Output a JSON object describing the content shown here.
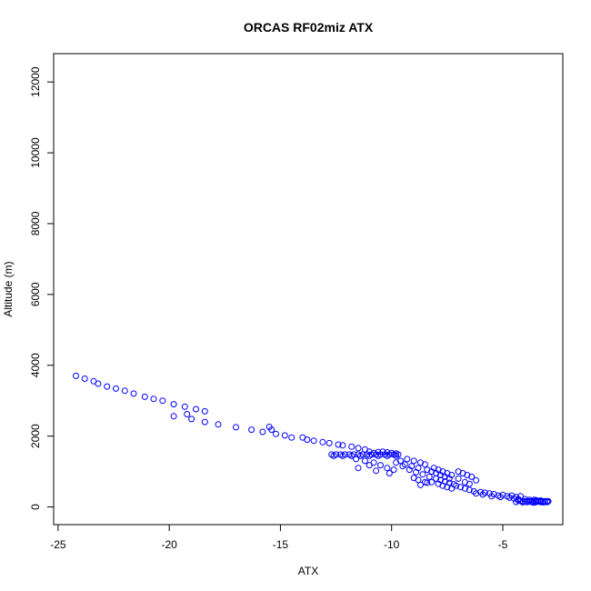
{
  "chart_data": {
    "type": "scatter",
    "title": "ORCAS RF02miz ATX",
    "xlabel": "ATX",
    "ylabel": "Altitude (m)",
    "xlim": [
      -25.2,
      -2.3
    ],
    "ylim": [
      -500,
      12800
    ],
    "xticks": [
      -25,
      -20,
      -15,
      -10,
      -5
    ],
    "yticks": [
      0,
      2000,
      4000,
      6000,
      8000,
      10000,
      12000
    ],
    "xtick_labels": [
      "-25",
      "-20",
      "-15",
      "-10",
      "-5"
    ],
    "ytick_labels": [
      "0",
      "2000",
      "4000",
      "6000",
      "8000",
      "10000",
      "12000"
    ],
    "grid": false,
    "marker": "open-circle",
    "color": "#0000ff",
    "points": [
      [
        -24.2,
        3700
      ],
      [
        -23.8,
        3620
      ],
      [
        -23.4,
        3550
      ],
      [
        -23.2,
        3480
      ],
      [
        -22.8,
        3400
      ],
      [
        -22.4,
        3340
      ],
      [
        -22.0,
        3280
      ],
      [
        -21.6,
        3200
      ],
      [
        -21.1,
        3110
      ],
      [
        -20.7,
        3050
      ],
      [
        -20.3,
        3000
      ],
      [
        -19.8,
        2900
      ],
      [
        -19.3,
        2830
      ],
      [
        -18.8,
        2760
      ],
      [
        -18.4,
        2700
      ],
      [
        -19.2,
        2620
      ],
      [
        -19.8,
        2560
      ],
      [
        -19.0,
        2480
      ],
      [
        -18.4,
        2400
      ],
      [
        -17.8,
        2330
      ],
      [
        -17.0,
        2250
      ],
      [
        -16.3,
        2180
      ],
      [
        -15.8,
        2120
      ],
      [
        -15.5,
        2260
      ],
      [
        -15.4,
        2180
      ],
      [
        -15.2,
        2060
      ],
      [
        -14.8,
        2020
      ],
      [
        -14.5,
        1960
      ],
      [
        -14.0,
        1960
      ],
      [
        -13.8,
        1900
      ],
      [
        -13.5,
        1870
      ],
      [
        -13.1,
        1830
      ],
      [
        -12.8,
        1800
      ],
      [
        -12.4,
        1760
      ],
      [
        -12.2,
        1740
      ],
      [
        -11.8,
        1700
      ],
      [
        -11.5,
        1660
      ],
      [
        -11.2,
        1620
      ],
      [
        -11.0,
        1560
      ],
      [
        -10.8,
        1520
      ],
      [
        -12.7,
        1480
      ],
      [
        -12.5,
        1480
      ],
      [
        -12.3,
        1480
      ],
      [
        -12.1,
        1480
      ],
      [
        -11.9,
        1480
      ],
      [
        -11.7,
        1480
      ],
      [
        -11.5,
        1480
      ],
      [
        -11.3,
        1480
      ],
      [
        -11.1,
        1480
      ],
      [
        -10.9,
        1480
      ],
      [
        -10.7,
        1480
      ],
      [
        -10.5,
        1480
      ],
      [
        -10.3,
        1480
      ],
      [
        -10.1,
        1480
      ],
      [
        -9.9,
        1480
      ],
      [
        -9.7,
        1480
      ],
      [
        -12.6,
        1440
      ],
      [
        -12.2,
        1440
      ],
      [
        -11.8,
        1440
      ],
      [
        -11.4,
        1440
      ],
      [
        -11.0,
        1440
      ],
      [
        -10.6,
        1440
      ],
      [
        -10.2,
        1440
      ],
      [
        -9.8,
        1440
      ],
      [
        -10.6,
        1550
      ],
      [
        -10.4,
        1560
      ],
      [
        -10.2,
        1540
      ],
      [
        -10.0,
        1520
      ],
      [
        -9.8,
        1510
      ],
      [
        -11.6,
        1350
      ],
      [
        -11.2,
        1300
      ],
      [
        -10.8,
        1250
      ],
      [
        -10.5,
        1180
      ],
      [
        -10.2,
        1100
      ],
      [
        -9.9,
        1050
      ],
      [
        -11.5,
        1100
      ],
      [
        -11.0,
        1180
      ],
      [
        -10.7,
        1020
      ],
      [
        -10.1,
        950
      ],
      [
        -9.6,
        1300
      ],
      [
        -9.3,
        1350
      ],
      [
        -9.0,
        1300
      ],
      [
        -8.7,
        1250
      ],
      [
        -8.5,
        1200
      ],
      [
        -9.5,
        1150
      ],
      [
        -9.2,
        1050
      ],
      [
        -8.9,
        980
      ],
      [
        -8.6,
        920
      ],
      [
        -8.3,
        850
      ],
      [
        -9.8,
        1250
      ],
      [
        -9.4,
        1200
      ],
      [
        -9.1,
        1150
      ],
      [
        -8.8,
        1100
      ],
      [
        -8.4,
        1050
      ],
      [
        -8.2,
        1000
      ],
      [
        -8.0,
        950
      ],
      [
        -7.8,
        900
      ],
      [
        -7.6,
        850
      ],
      [
        -7.4,
        800
      ],
      [
        -8.1,
        1100
      ],
      [
        -7.9,
        1050
      ],
      [
        -7.7,
        1000
      ],
      [
        -7.5,
        950
      ],
      [
        -7.3,
        900
      ],
      [
        -8.0,
        800
      ],
      [
        -7.8,
        760
      ],
      [
        -7.6,
        720
      ],
      [
        -7.4,
        680
      ],
      [
        -7.2,
        640
      ],
      [
        -8.2,
        700
      ],
      [
        -7.9,
        650
      ],
      [
        -7.7,
        600
      ],
      [
        -7.5,
        560
      ],
      [
        -7.3,
        520
      ],
      [
        -7.0,
        1000
      ],
      [
        -6.8,
        950
      ],
      [
        -6.6,
        900
      ],
      [
        -6.4,
        850
      ],
      [
        -6.2,
        750
      ],
      [
        -7.1,
        600
      ],
      [
        -6.9,
        560
      ],
      [
        -6.7,
        520
      ],
      [
        -6.5,
        480
      ],
      [
        -6.3,
        440
      ],
      [
        -8.5,
        700
      ],
      [
        -8.8,
        760
      ],
      [
        -9.0,
        820
      ],
      [
        -8.7,
        620
      ],
      [
        -8.4,
        680
      ],
      [
        -7.0,
        800
      ],
      [
        -6.7,
        700
      ],
      [
        -6.5,
        650
      ],
      [
        -6.0,
        420
      ],
      [
        -5.8,
        400
      ],
      [
        -6.2,
        380
      ],
      [
        -5.9,
        350
      ],
      [
        -5.6,
        380
      ],
      [
        -5.4,
        360
      ],
      [
        -5.2,
        320
      ],
      [
        -5.0,
        340
      ],
      [
        -4.8,
        300
      ],
      [
        -4.6,
        320
      ],
      [
        -4.4,
        280
      ],
      [
        -4.2,
        300
      ],
      [
        -5.5,
        300
      ],
      [
        -5.1,
        280
      ],
      [
        -4.7,
        260
      ],
      [
        -4.5,
        240
      ],
      [
        -4.3,
        220
      ],
      [
        -4.3,
        180
      ],
      [
        -4.2,
        170
      ],
      [
        -4.1,
        160
      ],
      [
        -4.0,
        160
      ],
      [
        -3.9,
        160
      ],
      [
        -3.8,
        160
      ],
      [
        -3.7,
        160
      ],
      [
        -3.6,
        160
      ],
      [
        -3.5,
        160
      ],
      [
        -3.4,
        160
      ],
      [
        -3.3,
        160
      ],
      [
        -3.2,
        160
      ],
      [
        -3.1,
        160
      ],
      [
        -3.0,
        160
      ],
      [
        -2.95,
        160
      ],
      [
        -4.0,
        220
      ],
      [
        -3.8,
        200
      ],
      [
        -3.6,
        200
      ],
      [
        -3.5,
        190
      ],
      [
        -3.3,
        180
      ],
      [
        -3.9,
        140
      ],
      [
        -3.7,
        140
      ],
      [
        -3.5,
        140
      ],
      [
        -3.3,
        140
      ],
      [
        -3.1,
        140
      ],
      [
        -4.4,
        140
      ],
      [
        -4.1,
        130
      ],
      [
        -3.6,
        120
      ],
      [
        -3.2,
        130
      ],
      [
        -3.0,
        140
      ]
    ]
  }
}
